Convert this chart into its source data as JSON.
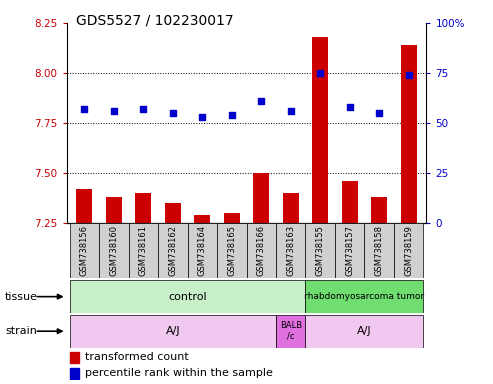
{
  "title": "GDS5527 / 102230017",
  "samples": [
    "GSM738156",
    "GSM738160",
    "GSM738161",
    "GSM738162",
    "GSM738164",
    "GSM738165",
    "GSM738166",
    "GSM738163",
    "GSM738155",
    "GSM738157",
    "GSM738158",
    "GSM738159"
  ],
  "transformed_count": [
    7.42,
    7.38,
    7.4,
    7.35,
    7.29,
    7.3,
    7.5,
    7.4,
    8.18,
    7.46,
    7.38,
    8.14
  ],
  "percentile_rank": [
    57,
    56,
    57,
    55,
    53,
    54,
    61,
    56,
    75,
    58,
    55,
    74
  ],
  "ylim_left": [
    7.25,
    8.25
  ],
  "ylim_right": [
    0,
    100
  ],
  "yticks_left": [
    7.25,
    7.5,
    7.75,
    8.0,
    8.25
  ],
  "yticks_right": [
    0,
    25,
    50,
    75,
    100
  ],
  "ytick_labels_right": [
    "0",
    "25",
    "50",
    "75",
    "100%"
  ],
  "hlines": [
    7.5,
    7.75,
    8.0
  ],
  "bar_color": "#CC0000",
  "dot_color": "#0000CC",
  "title_fontsize": 10,
  "tick_fontsize": 7.5,
  "sample_fontsize": 6.0,
  "label_fontsize": 8,
  "legend_fontsize": 8,
  "tissue_control_color": "#C8F0C8",
  "tissue_tumor_color": "#70DD70",
  "strain_aj_color": "#F0C8F0",
  "strain_balb_color": "#E070E0",
  "sample_box_color": "#D0D0D0",
  "white": "#FFFFFF",
  "black": "#000000",
  "red_tick": "#CC0000",
  "blue_tick": "#0000CC"
}
